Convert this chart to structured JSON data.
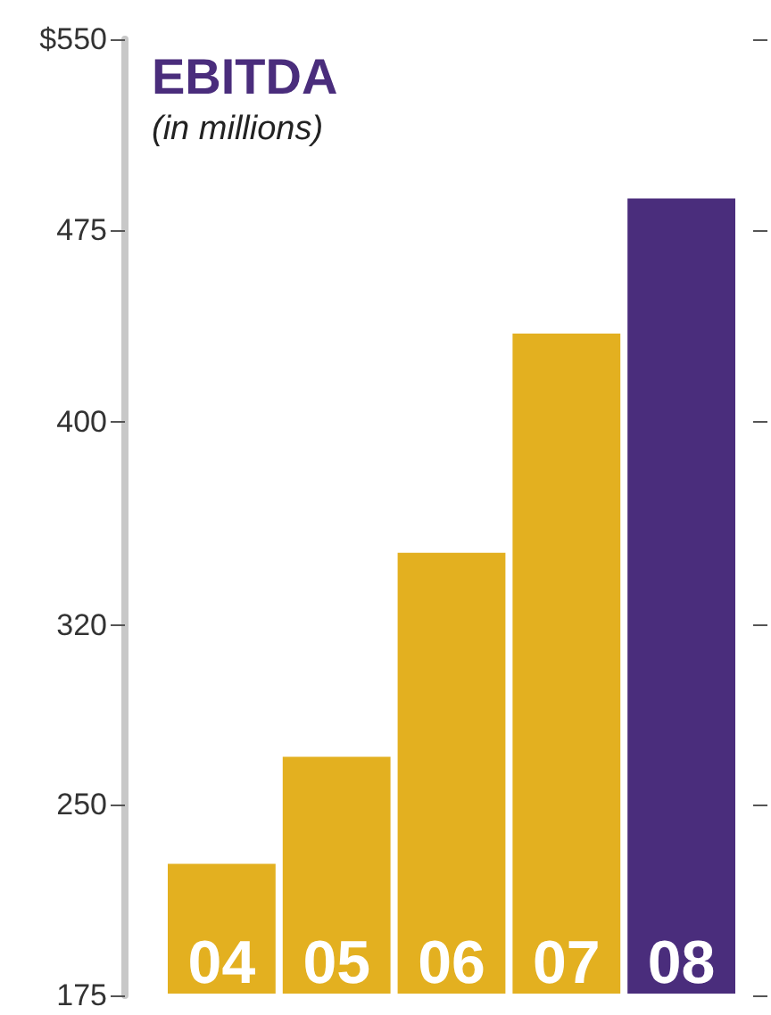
{
  "chart_data": {
    "type": "bar",
    "title": "EBITDA",
    "subtitle": "(in millions)",
    "categories": [
      "04",
      "05",
      "06",
      "07",
      "08"
    ],
    "values": [
      228,
      270,
      350,
      436,
      489
    ],
    "colors": [
      "#e3b020",
      "#e3b020",
      "#e3b020",
      "#e3b020",
      "#4a2d7c"
    ],
    "ylim": [
      175,
      550
    ],
    "yticks": [
      175,
      250,
      320,
      400,
      475,
      {
        "value": 550,
        "label": "$550"
      }
    ],
    "grid": false
  }
}
